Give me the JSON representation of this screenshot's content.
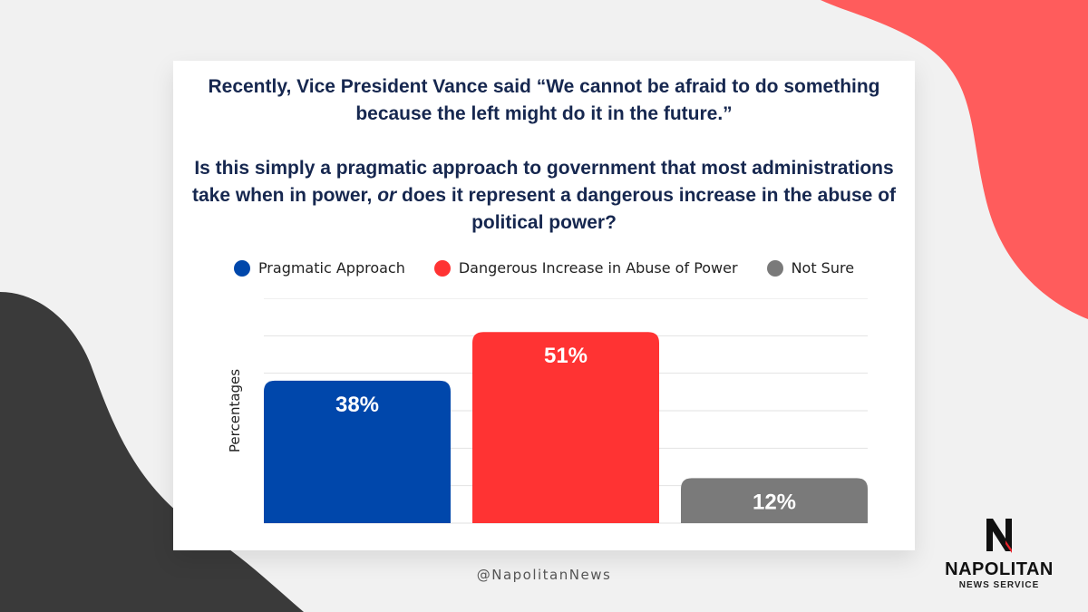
{
  "question": {
    "line1": "Recently, Vice President Vance said “We cannot be afraid to do something because the left might do it in the future.”",
    "line2_pre": "Is this simply a pragmatic approach to government that most administrations take when in power, ",
    "line2_em": "or",
    "line2_post": " does it represent a dangerous increase in the abuse of political power?"
  },
  "chart_data": {
    "type": "bar",
    "categories": [
      "Pragmatic Approach",
      "Dangerous Increase in Abuse of Power",
      "Not Sure"
    ],
    "values": [
      38,
      51,
      12
    ],
    "value_labels": [
      "38%",
      "51%",
      "12%"
    ],
    "colors": [
      "#0047ab",
      "#ff3333",
      "#7a7a7a"
    ],
    "ylabel": "Percentages",
    "ylim": [
      0,
      60
    ],
    "grid": true,
    "legend": "top-center"
  },
  "footer": {
    "handle": "@NapolitanNews"
  },
  "logo": {
    "name": "NAPOLITAN",
    "subtitle": "NEWS SERVICE"
  },
  "colors": {
    "navy": "#16274f",
    "coral": "#ff5c5c",
    "dark": "#3a3a3a"
  }
}
